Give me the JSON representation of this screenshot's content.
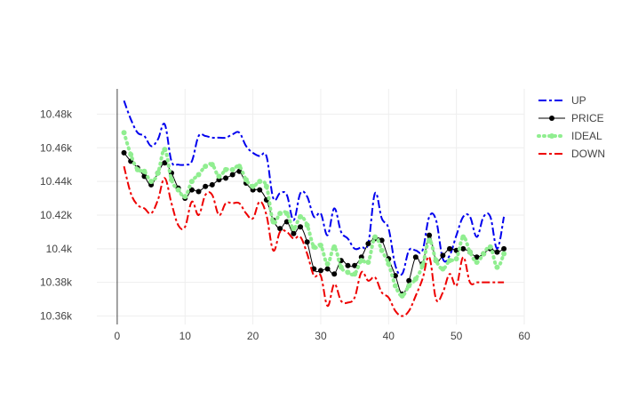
{
  "chart_data": {
    "type": "line",
    "title": "",
    "xlabel": "",
    "ylabel": "",
    "xlim": [
      -3,
      60
    ],
    "ylim": [
      10355,
      10495
    ],
    "x_ticks": [
      0,
      10,
      20,
      30,
      40,
      50,
      60
    ],
    "y_ticks": [
      10360,
      10380,
      10400,
      10420,
      10440,
      10460,
      10480
    ],
    "y_tick_labels": [
      "10.36k",
      "10.38k",
      "10.4k",
      "10.42k",
      "10.44k",
      "10.46k",
      "10.48k"
    ],
    "grid": true,
    "legend_position": "top-right",
    "x": [
      1,
      2,
      3,
      4,
      5,
      6,
      7,
      8,
      9,
      10,
      11,
      12,
      13,
      14,
      15,
      16,
      17,
      18,
      19,
      20,
      21,
      22,
      23,
      24,
      25,
      26,
      27,
      28,
      29,
      30,
      31,
      32,
      33,
      34,
      35,
      36,
      37,
      38,
      39,
      40,
      41,
      42,
      43,
      44,
      45,
      46,
      47,
      48,
      49,
      50,
      51,
      52,
      53,
      54,
      55,
      56,
      57
    ],
    "series": [
      {
        "name": "UP",
        "color": "#0000ee",
        "style": "dashdot",
        "values": [
          10488,
          10477,
          10469,
          10467,
          10461,
          10465,
          10474,
          10452,
          10450,
          10450,
          10452,
          10467,
          10467,
          10466,
          10466,
          10466,
          10468,
          10469,
          10461,
          10457,
          10455,
          10455,
          10430,
          10433,
          10432,
          10417,
          10433,
          10431,
          10419,
          10421,
          10408,
          10424,
          10410,
          10406,
          10400,
          10401,
          10403,
          10433,
          10418,
          10412,
          10390,
          10385,
          10399,
          10399,
          10399,
          10419,
          10417,
          10394,
          10396,
          10408,
          10419,
          10419,
          10407,
          10419,
          10419,
          10400,
          10419
        ]
      },
      {
        "name": "PRICE",
        "color": "#000000",
        "style": "solid-markers",
        "values": [
          10457,
          10452,
          10448,
          10443,
          10438,
          10445,
          10451,
          10445,
          10436,
          10430,
          10435,
          10434,
          10437,
          10438,
          10441,
          10442,
          10444,
          10446,
          10439,
          10435,
          10435,
          10429,
          10417,
          10412,
          10416,
          10409,
          10413,
          10404,
          10388,
          10387,
          10388,
          10385,
          10393,
          10390,
          10390,
          10395,
          10403,
          10406,
          10405,
          10394,
          10384,
          10373,
          10381,
          10395,
          10391,
          10408,
          10393,
          10396,
          10400,
          10399,
          10400,
          10398,
          10395,
          10397,
          10400,
          10398,
          10400
        ]
      },
      {
        "name": "IDEAL",
        "color": "#90ee90",
        "style": "dotted-markers",
        "values": [
          10469,
          10456,
          10447,
          10446,
          10440,
          10445,
          10459,
          10441,
          10435,
          10431,
          10440,
          10444,
          10449,
          10450,
          10443,
          10447,
          10447,
          10449,
          10441,
          10437,
          10440,
          10437,
          10416,
          10421,
          10421,
          10412,
          10419,
          10414,
          10401,
          10402,
          10391,
          10401,
          10389,
          10386,
          10385,
          10393,
          10392,
          10407,
          10399,
          10391,
          10378,
          10372,
          10378,
          10382,
          10390,
          10405,
          10393,
          10388,
          10393,
          10394,
          10407,
          10398,
          10392,
          10397,
          10401,
          10389,
          10397
        ]
      },
      {
        "name": "DOWN",
        "color": "#ee0000",
        "style": "dashdot",
        "values": [
          10449,
          10433,
          10426,
          10424,
          10421,
          10429,
          10442,
          10427,
          10414,
          10413,
          10428,
          10420,
          10432,
          10432,
          10420,
          10427,
          10427,
          10427,
          10421,
          10418,
          10428,
          10420,
          10399,
          10410,
          10410,
          10406,
          10407,
          10397,
          10384,
          10384,
          10366,
          10379,
          10369,
          10368,
          10371,
          10386,
          10381,
          10383,
          10374,
          10371,
          10363,
          10360,
          10363,
          10372,
          10382,
          10395,
          10370,
          10374,
          10385,
          10378,
          10395,
          10380,
          10380,
          10380,
          10380,
          10380,
          10380
        ]
      }
    ]
  }
}
